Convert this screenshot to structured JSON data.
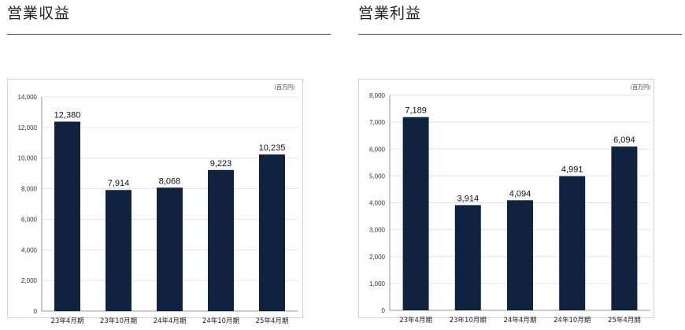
{
  "panels": [
    {
      "title": "営業収益"
    },
    {
      "title": "営業利益"
    }
  ],
  "colors": {
    "bar": "#0f2340",
    "rule": "#a81e2c",
    "grid": "#e3e3e3",
    "frame": "#d2d2d2"
  },
  "chart_data": [
    {
      "type": "bar",
      "title": "営業収益",
      "unit": "（百万円）",
      "categories": [
        "23年4月期",
        "23年10月期",
        "24年4月期",
        "24年10月期",
        "25年4月期"
      ],
      "values": [
        12380,
        7914,
        8068,
        9223,
        10235
      ],
      "value_labels": [
        "12,380",
        "7,914",
        "8,068",
        "9,223",
        "10,235"
      ],
      "ylim": [
        0,
        14000
      ],
      "yticks": [
        0,
        2000,
        4000,
        6000,
        8000,
        10000,
        12000,
        14000
      ],
      "ytick_labels": [
        "0",
        "2,000",
        "4,000",
        "6,000",
        "8,000",
        "10,000",
        "12,000",
        "14,000"
      ],
      "grid": true
    },
    {
      "type": "bar",
      "title": "営業利益",
      "unit": "（百万円）",
      "categories": [
        "23年4月期",
        "23年10月期",
        "24年4月期",
        "24年10月期",
        "25年4月期"
      ],
      "values": [
        7189,
        3914,
        4094,
        4991,
        6094
      ],
      "value_labels": [
        "7,189",
        "3,914",
        "4,094",
        "4,991",
        "6,094"
      ],
      "ylim": [
        0,
        8000
      ],
      "yticks": [
        0,
        1000,
        2000,
        3000,
        4000,
        5000,
        6000,
        7000,
        8000
      ],
      "ytick_labels": [
        "0",
        "1,000",
        "2,000",
        "3,000",
        "4,000",
        "5,000",
        "6,000",
        "7,000",
        "8,000"
      ],
      "grid": true
    }
  ]
}
